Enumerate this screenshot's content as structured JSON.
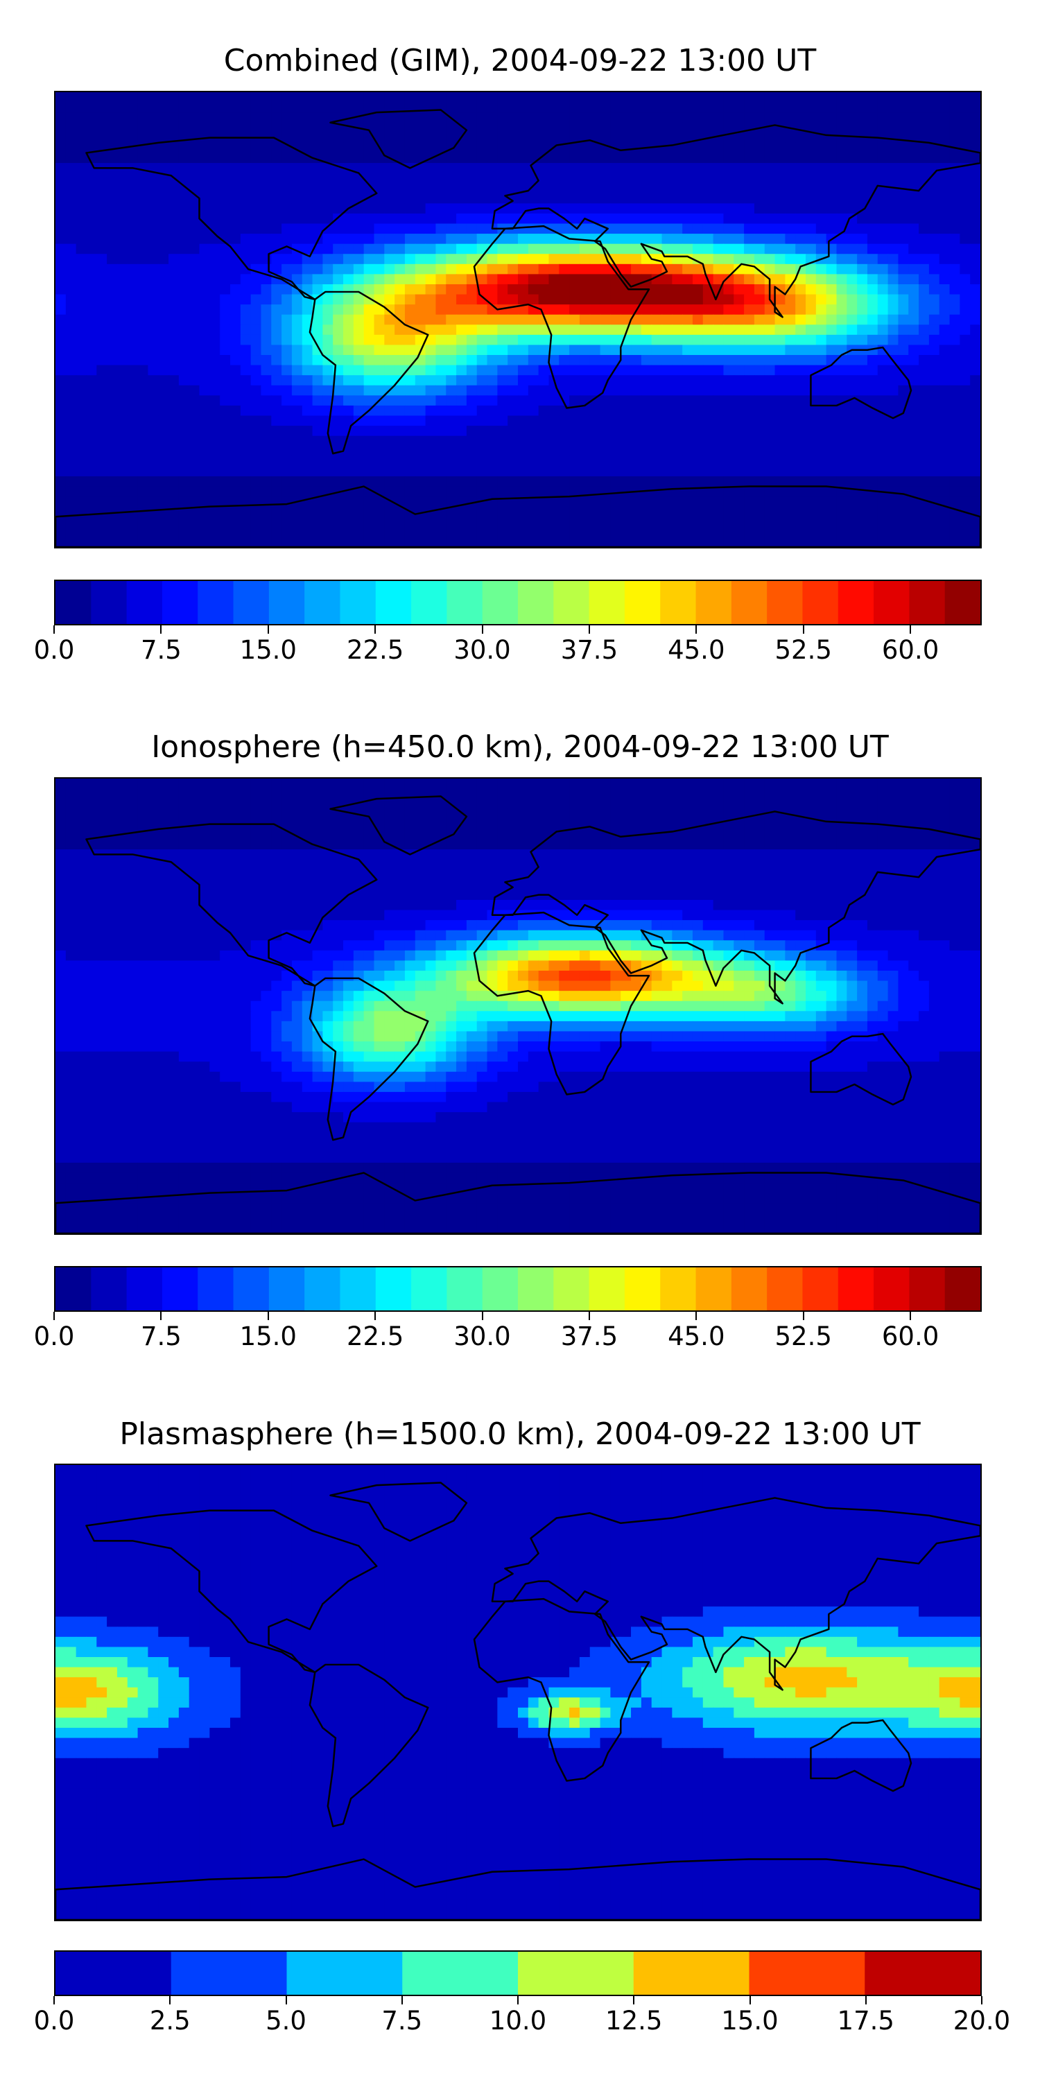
{
  "chart_data": [
    {
      "type": "heatmap",
      "title": "Combined (GIM), 2004-09-22 13:00 UT",
      "xlabel": "",
      "ylabel": "",
      "levels": 26,
      "cmap": "jet",
      "color_range": [
        0,
        65
      ],
      "colorbar_ticks": [
        "0.0",
        "7.5",
        "15.0",
        "22.5",
        "30.0",
        "37.5",
        "45.0",
        "52.5",
        "60.0"
      ],
      "colorbar_tick_values": [
        0,
        7.5,
        15,
        22.5,
        30,
        37.5,
        45,
        52.5,
        60
      ],
      "features": [
        {
          "lon": 25,
          "lat": 12,
          "peak": 60,
          "spread_lon": 70,
          "spread_lat": 18
        },
        {
          "lon": -50,
          "lat": -8,
          "peak": 32,
          "spread_lon": 40,
          "spread_lat": 22
        },
        {
          "lon": 100,
          "lat": 5,
          "peak": 30,
          "spread_lon": 50,
          "spread_lat": 18
        }
      ]
    },
    {
      "type": "heatmap",
      "title": "Ionosphere  (h=450.0 km), 2004-09-22 13:00 UT",
      "xlabel": "",
      "ylabel": "",
      "levels": 26,
      "cmap": "jet",
      "color_range": [
        0,
        65
      ],
      "colorbar_ticks": [
        "0.0",
        "7.5",
        "15.0",
        "22.5",
        "30.0",
        "37.5",
        "45.0",
        "52.5",
        "60.0"
      ],
      "colorbar_tick_values": [
        0,
        7.5,
        15,
        22.5,
        30,
        37.5,
        45,
        52.5,
        60
      ],
      "features": [
        {
          "lon": 25,
          "lat": 12,
          "peak": 48,
          "spread_lon": 55,
          "spread_lat": 16
        },
        {
          "lon": -50,
          "lat": -10,
          "peak": 28,
          "spread_lon": 35,
          "spread_lat": 20
        },
        {
          "lon": 100,
          "lat": 5,
          "peak": 22,
          "spread_lon": 40,
          "spread_lat": 15
        }
      ]
    },
    {
      "type": "heatmap",
      "title": "Plasmasphere (h=1500.0 km), 2004-09-22 13:00 UT",
      "xlabel": "",
      "ylabel": "",
      "levels": 8,
      "cmap": "jet",
      "color_range": [
        0,
        20
      ],
      "colorbar_ticks": [
        "0.0",
        "2.5",
        "5.0",
        "7.5",
        "10.0",
        "12.5",
        "15.0",
        "17.5",
        "20.0"
      ],
      "colorbar_tick_values": [
        0,
        2.5,
        5,
        7.5,
        10,
        12.5,
        15,
        17.5,
        20
      ],
      "features": [
        {
          "lon": 110,
          "lat": 5,
          "peak": 11.5,
          "spread_lon": 55,
          "spread_lat": 20
        },
        {
          "lon": -170,
          "lat": 0,
          "peak": 10.5,
          "spread_lon": 40,
          "spread_lat": 18
        },
        {
          "lon": 20,
          "lat": -8,
          "peak": 10.5,
          "spread_lon": 18,
          "spread_lat": 8
        }
      ]
    }
  ]
}
